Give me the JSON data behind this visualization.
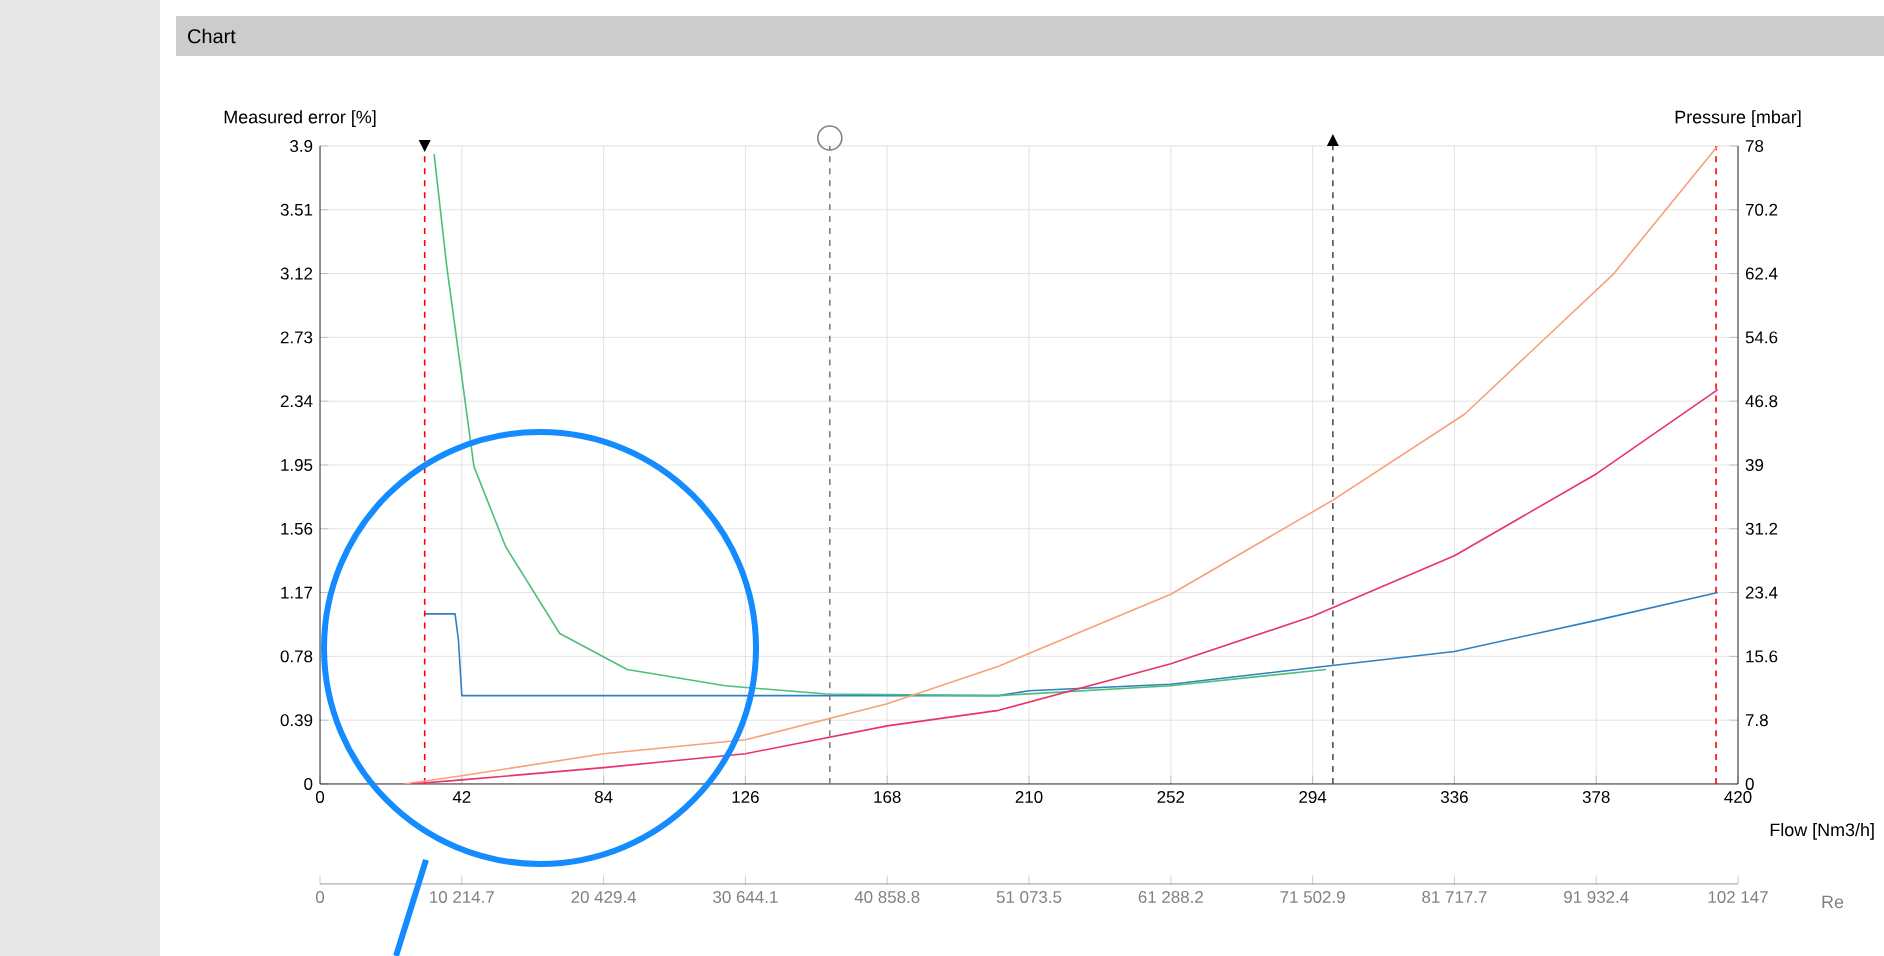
{
  "chart_data": {
    "type": "line",
    "title": "Chart",
    "xlabel": "Flow [Nm3/h]",
    "ylabel": "Measured error [%]",
    "y2label": "Pressure [mbar]",
    "x2label": "Re",
    "xlim": [
      0,
      420
    ],
    "xticks": [
      0,
      42,
      84,
      126,
      168,
      210,
      252,
      294,
      336,
      378,
      420
    ],
    "ylim": [
      0,
      3.9
    ],
    "yticks": [
      0,
      0.39,
      0.78,
      1.17,
      1.56,
      1.95,
      2.34,
      2.73,
      3.12,
      3.51,
      3.9
    ],
    "y2lim": [
      0,
      78
    ],
    "y2ticks": [
      0,
      7.8,
      15.6,
      23.4,
      31.2,
      39,
      46.8,
      54.6,
      62.4,
      70.2,
      78
    ],
    "x2lim": [
      0,
      102147
    ],
    "x2ticks": [
      0,
      {
        "value": 10214.7,
        "label": "10 214.7"
      },
      {
        "value": 20429.4,
        "label": "20 429.4"
      },
      {
        "value": 30644.1,
        "label": "30 644.1"
      },
      {
        "value": 40858.8,
        "label": "40 858.8"
      },
      {
        "value": 51073.5,
        "label": "51 073.5"
      },
      {
        "value": 61288.2,
        "label": "61 288.2"
      },
      {
        "value": 71502.9,
        "label": "71 502.9"
      },
      {
        "value": 81717.7,
        "label": "81 717.7"
      },
      {
        "value": 91932.4,
        "label": "91 932.4"
      },
      {
        "value": 102147,
        "label": "102 147"
      }
    ],
    "grid": true,
    "series": [
      {
        "color": "#2f7fc1",
        "x": [
          31,
          40,
          41,
          42,
          100,
          150,
          201,
          210,
          252,
          294,
          336,
          378,
          414
        ],
        "values": [
          1.04,
          1.04,
          0.88,
          0.54,
          0.54,
          0.54,
          0.54,
          0.57,
          0.61,
          0.71,
          0.81,
          1.0,
          1.17
        ]
      },
      {
        "color": "#4cbf7a",
        "x": [
          33.8,
          37.5,
          45.6,
          55,
          71,
          91,
          120,
          150,
          201,
          252,
          298
        ],
        "values": [
          3.85,
          3.17,
          1.94,
          1.45,
          0.92,
          0.7,
          0.6,
          0.55,
          0.54,
          0.6,
          0.7
        ]
      },
      {
        "color": "#f8a07a",
        "axis": "y2",
        "x": [
          25,
          42,
          84,
          126,
          168,
          201,
          252,
          300,
          339,
          383,
          414
        ],
        "values": [
          0,
          1,
          3.7,
          5.4,
          9.8,
          14.4,
          23.2,
          34.7,
          45.2,
          62.3,
          78
        ]
      },
      {
        "color": "#e8336e",
        "axis": "y2",
        "x": [
          27,
          42,
          84,
          126,
          168,
          201,
          252,
          294,
          336,
          378,
          414
        ],
        "values": [
          0,
          0.5,
          2,
          3.7,
          7.1,
          9.0,
          14.7,
          20.5,
          27.9,
          37.9,
          48.2
        ]
      }
    ],
    "ref_lines": [
      {
        "axis": "x",
        "value": 31,
        "color": "#ff0000",
        "line_style": "dashed"
      },
      {
        "axis": "x",
        "value": 413.5,
        "color": "#ff0000",
        "line_style": "dashed"
      },
      {
        "axis": "x",
        "value": 151,
        "color": "#808080",
        "line_style": "dashed"
      },
      {
        "axis": "x",
        "value": 300,
        "color": "#505050",
        "line_style": "dashed"
      }
    ]
  }
}
